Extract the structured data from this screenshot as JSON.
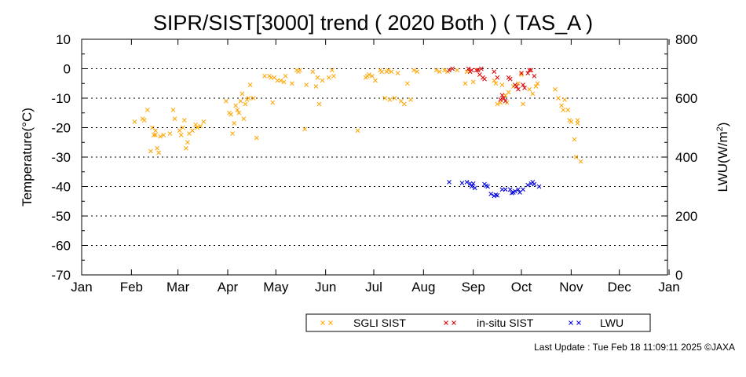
{
  "chart_data": {
    "type": "scatter",
    "title": "SIPR/SIST[3000] trend ( 2020 Both ) ( TAS_A )",
    "ylabel": "Temperature(°C)",
    "y2label_base": "LWU(W/m",
    "y2label_sup": "2",
    "y2label_end": ")",
    "xlim": [
      1,
      366
    ],
    "ylim": [
      -70,
      10
    ],
    "y2lim": [
      0,
      800
    ],
    "yticks": [
      10,
      0,
      -10,
      -20,
      -30,
      -40,
      -50,
      -60,
      -70
    ],
    "y2ticks": [
      800,
      600,
      400,
      200,
      0
    ],
    "grid": "horizontal dotted at major y ticks",
    "legend_position": "bottom-right",
    "xticks": [
      {
        "label": "Jan",
        "day": 1
      },
      {
        "label": "Feb",
        "day": 32
      },
      {
        "label": "Mar",
        "day": 61
      },
      {
        "label": "Apr",
        "day": 92
      },
      {
        "label": "May",
        "day": 122
      },
      {
        "label": "Jun",
        "day": 153
      },
      {
        "label": "Jul",
        "day": 183
      },
      {
        "label": "Aug",
        "day": 214
      },
      {
        "label": "Sep",
        "day": 245
      },
      {
        "label": "Oct",
        "day": 275
      },
      {
        "label": "Nov",
        "day": 306
      },
      {
        "label": "Dec",
        "day": 336
      },
      {
        "label": "Jan",
        "day": 367
      }
    ],
    "series": [
      {
        "name": "SGLI SIST",
        "color": "#ffa500",
        "axis": "left",
        "points": [
          [
            34,
            -18
          ],
          [
            39,
            -17
          ],
          [
            40,
            -17.5
          ],
          [
            42,
            -14
          ],
          [
            44,
            -28
          ],
          [
            45,
            -20
          ],
          [
            46,
            -22.5
          ],
          [
            47,
            -21
          ],
          [
            47,
            -22.5
          ],
          [
            48,
            -27
          ],
          [
            49,
            -28.5
          ],
          [
            50,
            -23
          ],
          [
            52,
            -22.5
          ],
          [
            56,
            -22
          ],
          [
            58,
            -14
          ],
          [
            59,
            -17
          ],
          [
            62,
            -21
          ],
          [
            63,
            -22.5
          ],
          [
            64,
            -20
          ],
          [
            65,
            -17.5
          ],
          [
            66,
            -27
          ],
          [
            67,
            -25
          ],
          [
            68,
            -22
          ],
          [
            70,
            -21
          ],
          [
            72,
            -19
          ],
          [
            73,
            -20
          ],
          [
            75,
            -19.5
          ],
          [
            77,
            -18
          ],
          [
            91,
            -11
          ],
          [
            93,
            -15
          ],
          [
            94,
            -15.5
          ],
          [
            95,
            -22
          ],
          [
            96,
            -18.5
          ],
          [
            97,
            -12.5
          ],
          [
            98,
            -14
          ],
          [
            99,
            -15
          ],
          [
            100,
            -11
          ],
          [
            101,
            -8.5
          ],
          [
            102,
            -17
          ],
          [
            103,
            -12
          ],
          [
            104,
            -10.5
          ],
          [
            105,
            -10
          ],
          [
            106,
            -5.5
          ],
          [
            108,
            -10
          ],
          [
            110,
            -23.5
          ],
          [
            115,
            -2.5
          ],
          [
            118,
            -2.5
          ],
          [
            119,
            -3
          ],
          [
            120,
            -11.5
          ],
          [
            121,
            -3
          ],
          [
            123,
            -4
          ],
          [
            125,
            -4
          ],
          [
            127,
            -4.5
          ],
          [
            128,
            -2.5
          ],
          [
            132,
            -5
          ],
          [
            135,
            -0.5
          ],
          [
            136,
            -1
          ],
          [
            137,
            -0.5
          ],
          [
            140,
            -20.5
          ],
          [
            141,
            -5.5
          ],
          [
            145,
            -1
          ],
          [
            147,
            -6
          ],
          [
            148,
            -3
          ],
          [
            149,
            -12
          ],
          [
            151,
            -4
          ],
          [
            155,
            -3
          ],
          [
            157,
            -0.5
          ],
          [
            158,
            -2.5
          ],
          [
            173,
            -21
          ],
          [
            178,
            -3
          ],
          [
            179,
            -2.5
          ],
          [
            180,
            -2
          ],
          [
            182,
            -2.5
          ],
          [
            184,
            -4
          ],
          [
            187,
            -0.5
          ],
          [
            188,
            -1
          ],
          [
            190,
            -10
          ],
          [
            191,
            -1
          ],
          [
            192,
            -0.5
          ],
          [
            193,
            -10.5
          ],
          [
            194,
            -1
          ],
          [
            196,
            -10
          ],
          [
            198,
            -1.5
          ],
          [
            200,
            -11
          ],
          [
            202,
            -12
          ],
          [
            204,
            -5
          ],
          [
            206,
            -10.5
          ],
          [
            208,
            -0.5
          ],
          [
            210,
            -1
          ],
          [
            222,
            -0.5
          ],
          [
            224,
            -1
          ],
          [
            227,
            -0.5
          ],
          [
            229,
            -1
          ],
          [
            235,
            -0.5
          ],
          [
            240,
            -5
          ],
          [
            241,
            -1
          ],
          [
            243,
            -1
          ],
          [
            245,
            -4.5
          ],
          [
            258,
            -4
          ],
          [
            259,
            -5
          ],
          [
            260,
            -12
          ],
          [
            262,
            -11.5
          ],
          [
            263,
            -5.5
          ],
          [
            265,
            -9
          ],
          [
            266,
            -11.5
          ],
          [
            267,
            -8
          ],
          [
            270,
            -6
          ],
          [
            273,
            -5
          ],
          [
            275,
            -2
          ],
          [
            276,
            -12
          ],
          [
            280,
            -7
          ],
          [
            282,
            -8.5
          ],
          [
            284,
            -6
          ],
          [
            285,
            -5
          ],
          [
            296,
            -7
          ],
          [
            298,
            -10
          ],
          [
            300,
            -12.5
          ],
          [
            301,
            -14
          ],
          [
            302,
            -10.5
          ],
          [
            304,
            -14
          ],
          [
            305,
            -17.5
          ],
          [
            306,
            -18
          ],
          [
            308,
            -24
          ],
          [
            309,
            -30
          ],
          [
            310,
            -17.5
          ],
          [
            310,
            -18.5
          ],
          [
            312,
            -31.5
          ]
        ]
      },
      {
        "name": "in-situ SIST",
        "color": "#dd0000",
        "axis": "left",
        "points": [
          [
            230,
            -0.5
          ],
          [
            232,
            0
          ],
          [
            242,
            0
          ],
          [
            243,
            -1
          ],
          [
            244,
            -0.5
          ],
          [
            247,
            -0.5
          ],
          [
            248,
            -0.5
          ],
          [
            249,
            -2
          ],
          [
            250,
            0
          ],
          [
            251,
            -3
          ],
          [
            252,
            -3.5
          ],
          [
            258,
            -1
          ],
          [
            260,
            -3
          ],
          [
            262,
            -10.5
          ],
          [
            263,
            -9
          ],
          [
            264,
            -10
          ],
          [
            265,
            -11
          ],
          [
            267,
            -3
          ],
          [
            268,
            -3.5
          ],
          [
            271,
            -5.5
          ],
          [
            272,
            -6
          ],
          [
            273,
            -7
          ],
          [
            275,
            -1.5
          ],
          [
            276,
            -5.5
          ],
          [
            277,
            -6.5
          ],
          [
            279,
            -1.5
          ],
          [
            280,
            -0.5
          ],
          [
            281,
            -0.5
          ],
          [
            283,
            -2.5
          ]
        ]
      },
      {
        "name": "LWU",
        "color": "#0000dd",
        "axis": "right",
        "points": [
          [
            230,
            315
          ],
          [
            238,
            312
          ],
          [
            241,
            315
          ],
          [
            243,
            310
          ],
          [
            244,
            300
          ],
          [
            245,
            310
          ],
          [
            246,
            295
          ],
          [
            252,
            308
          ],
          [
            253,
            303
          ],
          [
            254,
            300
          ],
          [
            256,
            275
          ],
          [
            258,
            268
          ],
          [
            259,
            272
          ],
          [
            260,
            270
          ],
          [
            263,
            290
          ],
          [
            265,
            290
          ],
          [
            268,
            290
          ],
          [
            269,
            278
          ],
          [
            270,
            280
          ],
          [
            271,
            284
          ],
          [
            273,
            290
          ],
          [
            274,
            280
          ],
          [
            276,
            290
          ],
          [
            279,
            305
          ],
          [
            281,
            310
          ],
          [
            282,
            315
          ],
          [
            283,
            308
          ],
          [
            286,
            300
          ]
        ]
      }
    ]
  },
  "footer": {
    "text": "Last Update : Tue Feb 18 11:09:11 2025  ©JAXA"
  }
}
